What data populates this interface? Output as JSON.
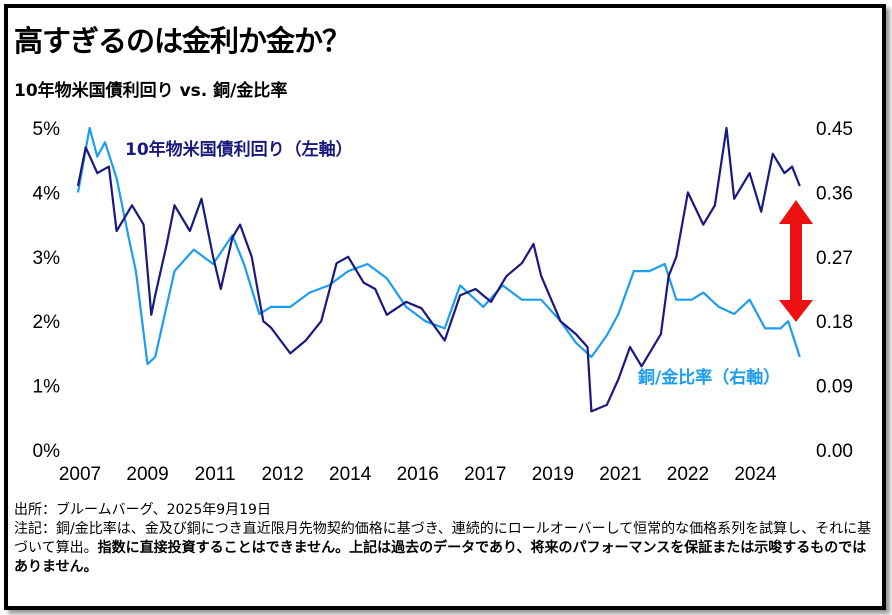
{
  "title": "高すぎるのは金利か金か？",
  "subtitle": "10年物米国債利回り vs. 銅/金比率",
  "notes": {
    "source": "出所：ブルームバーグ、2025年9月19日",
    "note_normal": "注記：銅/金比率は、金及び銅につき直近限月先物契約価格に基づき、連続的にロールオーバーして恒常的な価格系列を試算し、それに基づいて算出。",
    "note_bold": "指数に直接投資することはできません。上記は過去のデータであり、将来のパフォーマンスを保証または示唆するものではありません。"
  },
  "chart_data": {
    "type": "line",
    "title": "10年物米国債利回り vs. 銅/金比率",
    "x_tick_labels": [
      "2007",
      "2009",
      "2011",
      "2012",
      "2014",
      "2016",
      "2017",
      "2019",
      "2021",
      "2022",
      "2024"
    ],
    "xlim": [
      2007.0,
      2025.8
    ],
    "y_left": {
      "ticks": [
        "0%",
        "1%",
        "2%",
        "3%",
        "4%",
        "5%"
      ],
      "ylim": [
        0,
        5
      ]
    },
    "y_right": {
      "ticks": [
        "0.00",
        "0.09",
        "0.18",
        "0.27",
        "0.36",
        "0.45"
      ],
      "ylim": [
        0,
        0.45
      ]
    },
    "grid": false,
    "series": [
      {
        "name": "10年物米国債利回り（左軸）",
        "axis": "left",
        "color": "#1a1a7e",
        "x": [
          2007.0,
          2007.2,
          2007.5,
          2007.8,
          2008.0,
          2008.2,
          2008.4,
          2008.7,
          2008.9,
          2009.0,
          2009.3,
          2009.5,
          2009.9,
          2010.2,
          2010.5,
          2010.7,
          2011.0,
          2011.2,
          2011.5,
          2011.8,
          2012.0,
          2012.5,
          2012.9,
          2013.3,
          2013.7,
          2014.0,
          2014.4,
          2014.7,
          2015.0,
          2015.5,
          2015.9,
          2016.5,
          2016.9,
          2017.3,
          2017.7,
          2018.1,
          2018.5,
          2018.8,
          2019.0,
          2019.5,
          2019.9,
          2020.2,
          2020.3,
          2020.7,
          2021.0,
          2021.3,
          2021.6,
          2022.1,
          2022.3,
          2022.5,
          2022.8,
          2023.2,
          2023.5,
          2023.8,
          2024.0,
          2024.4,
          2024.7,
          2025.0,
          2025.3,
          2025.5,
          2025.7
        ],
        "values": [
          4.1,
          4.7,
          4.3,
          4.4,
          3.4,
          3.6,
          3.8,
          3.5,
          2.1,
          2.4,
          3.2,
          3.8,
          3.4,
          3.9,
          3.0,
          2.5,
          3.3,
          3.5,
          3.0,
          2.0,
          1.9,
          1.5,
          1.7,
          2.0,
          2.9,
          3.0,
          2.6,
          2.5,
          2.1,
          2.3,
          2.2,
          1.7,
          2.4,
          2.5,
          2.3,
          2.7,
          2.9,
          3.2,
          2.7,
          2.0,
          1.8,
          1.6,
          0.6,
          0.7,
          1.1,
          1.6,
          1.3,
          1.8,
          2.7,
          3.0,
          4.0,
          3.5,
          3.8,
          5.0,
          3.9,
          4.3,
          3.7,
          4.6,
          4.3,
          4.4,
          4.1
        ]
      },
      {
        "name": "銅/金比率（右軸）",
        "axis": "right",
        "color": "#1e9cf0",
        "x": [
          2007.0,
          2007.3,
          2007.5,
          2007.7,
          2008.0,
          2008.3,
          2008.5,
          2008.8,
          2009.0,
          2009.5,
          2010.0,
          2010.5,
          2011.0,
          2011.3,
          2011.7,
          2012.0,
          2012.5,
          2013.0,
          2013.5,
          2014.0,
          2014.5,
          2015.0,
          2015.5,
          2016.0,
          2016.5,
          2016.9,
          2017.5,
          2018.0,
          2018.5,
          2019.0,
          2019.5,
          2019.9,
          2020.3,
          2020.7,
          2021.0,
          2021.4,
          2021.8,
          2022.2,
          2022.5,
          2022.9,
          2023.2,
          2023.6,
          2024.0,
          2024.4,
          2024.8,
          2025.2,
          2025.4,
          2025.7
        ],
        "values": [
          0.36,
          0.45,
          0.41,
          0.43,
          0.38,
          0.3,
          0.25,
          0.12,
          0.13,
          0.25,
          0.28,
          0.26,
          0.3,
          0.26,
          0.19,
          0.2,
          0.2,
          0.22,
          0.23,
          0.25,
          0.26,
          0.24,
          0.2,
          0.18,
          0.17,
          0.23,
          0.2,
          0.23,
          0.21,
          0.21,
          0.18,
          0.15,
          0.13,
          0.16,
          0.19,
          0.25,
          0.25,
          0.26,
          0.21,
          0.21,
          0.22,
          0.2,
          0.19,
          0.21,
          0.17,
          0.17,
          0.18,
          0.13
        ]
      }
    ],
    "annotations": [
      {
        "text": "10年物米国債利回り（左軸）",
        "color": "#1a1a7e"
      },
      {
        "text": "銅/金比率（右軸）",
        "color": "#1e9cf0"
      },
      {
        "type": "double-arrow",
        "color": "#ee1111"
      }
    ]
  }
}
